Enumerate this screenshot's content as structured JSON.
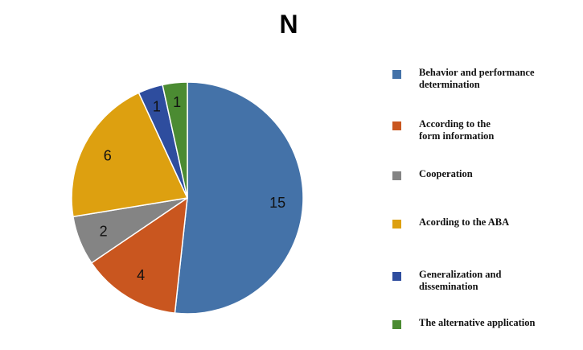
{
  "chart_data": {
    "type": "pie",
    "title": "N",
    "categories": [
      "Behavior and performance determination",
      "According to the form information",
      "Cooperation",
      "Acording to the ABA",
      "Generalization and dissemination",
      "The alternative application"
    ],
    "legend_lines": [
      [
        "Behavior and performance",
        "determination"
      ],
      [
        "According to the",
        "form information"
      ],
      [
        "Cooperation"
      ],
      [
        "Acording to the ABA"
      ],
      [
        "Generalization and",
        "dissemination"
      ],
      [
        "The alternative application"
      ]
    ],
    "values": [
      15,
      4,
      2,
      6,
      1,
      1
    ],
    "colors": [
      "#4472a8",
      "#c9561f",
      "#848484",
      "#dda010",
      "#2e4d9e",
      "#4b8b32"
    ],
    "legend_placement": "right",
    "data_labels": true
  }
}
